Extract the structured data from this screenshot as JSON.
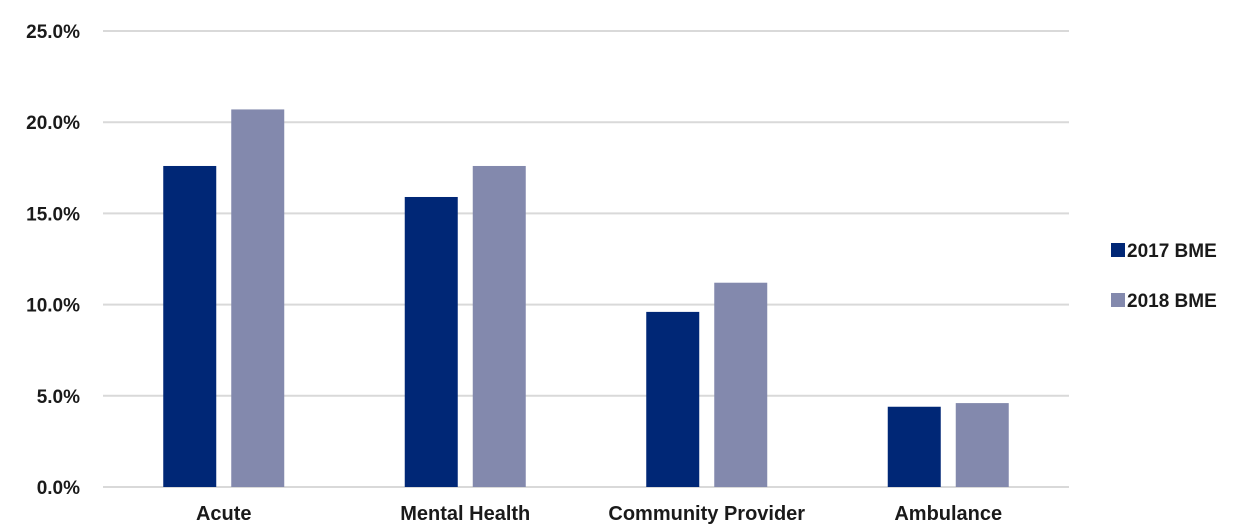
{
  "chart_data": {
    "type": "bar",
    "title": "",
    "xlabel": "",
    "ylabel": "",
    "categories": [
      "Acute",
      "Mental Health",
      "Community Provider",
      "Ambulance"
    ],
    "series": [
      {
        "name": "2017 BME",
        "values": [
          17.6,
          15.9,
          9.6,
          4.4
        ],
        "color": "#002776"
      },
      {
        "name": "2018 BME",
        "values": [
          20.7,
          17.6,
          11.2,
          4.6
        ],
        "color": "#8389ad"
      }
    ],
    "ylim": [
      0,
      25
    ],
    "yticks": [
      0,
      5,
      10,
      15,
      20,
      25
    ],
    "ytick_labels": [
      "0.0%",
      "5.0%",
      "10.0%",
      "15.0%",
      "20.0%",
      "25.0%"
    ],
    "grid": true,
    "legend_position": "right",
    "gridline_color": "#d9d9d9"
  }
}
